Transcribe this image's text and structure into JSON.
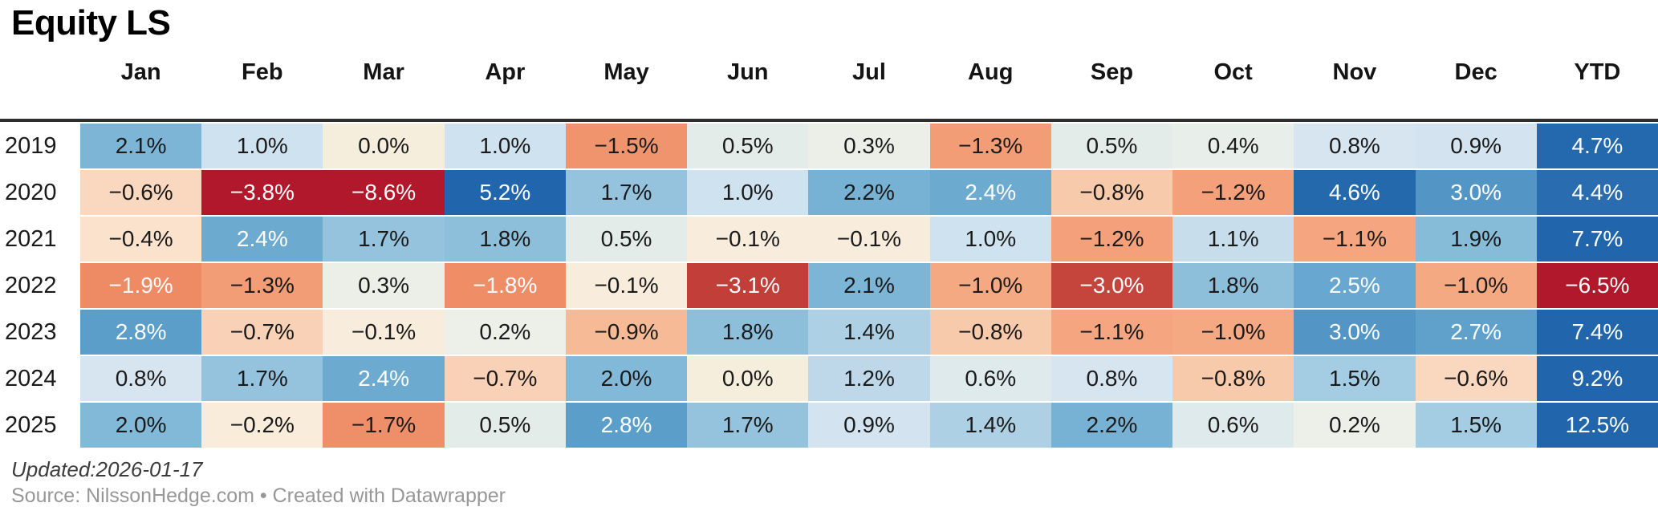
{
  "title": "Equity LS",
  "chart_data": {
    "type": "heatmap",
    "title": "Equity LS",
    "unit": "%",
    "categories": [
      "Jan",
      "Feb",
      "Mar",
      "Apr",
      "May",
      "Jun",
      "Jul",
      "Aug",
      "Sep",
      "Oct",
      "Nov",
      "Dec",
      "YTD"
    ],
    "series": [
      {
        "name": "2019",
        "values": [
          2.1,
          1.0,
          0.0,
          1.0,
          -1.5,
          0.5,
          0.3,
          -1.3,
          0.5,
          0.4,
          0.8,
          0.9,
          4.7
        ]
      },
      {
        "name": "2020",
        "values": [
          -0.6,
          -3.8,
          -8.6,
          5.2,
          1.7,
          1.0,
          2.2,
          2.4,
          -0.8,
          -1.2,
          4.6,
          3.0,
          4.4
        ]
      },
      {
        "name": "2021",
        "values": [
          -0.4,
          2.4,
          1.7,
          1.8,
          0.5,
          -0.1,
          -0.1,
          1.0,
          -1.2,
          1.1,
          -1.1,
          1.9,
          7.7
        ]
      },
      {
        "name": "2022",
        "values": [
          -1.9,
          -1.3,
          0.3,
          -1.8,
          -0.1,
          -3.1,
          2.1,
          -1.0,
          -3.0,
          1.8,
          2.5,
          -1.0,
          -6.5
        ]
      },
      {
        "name": "2023",
        "values": [
          2.8,
          -0.7,
          -0.1,
          0.2,
          -0.9,
          1.8,
          1.4,
          -0.8,
          -1.1,
          -1.0,
          3.0,
          2.7,
          7.4
        ]
      },
      {
        "name": "2024",
        "values": [
          0.8,
          1.7,
          2.4,
          -0.7,
          2.0,
          0.0,
          1.2,
          0.6,
          0.8,
          -0.8,
          1.5,
          -0.6,
          9.2
        ]
      },
      {
        "name": "2025",
        "values": [
          2.0,
          -0.2,
          -1.7,
          0.5,
          2.8,
          1.7,
          0.9,
          1.4,
          2.2,
          0.6,
          0.2,
          1.5,
          12.5
        ]
      }
    ],
    "color_scale": {
      "type": "diverging",
      "negative_end": "#b2182b",
      "midpoint": "#f6eedd",
      "positive_end": "#2166ac",
      "white_text_positive_threshold": 2.4,
      "white_text_negative_threshold": -1.8
    },
    "layout": {
      "row_header": "year",
      "value_format": "0.0%"
    }
  },
  "footer": {
    "updated": "Updated:2026-01-17",
    "source": "Source: NilssonHedge.com • Created with Datawrapper"
  }
}
